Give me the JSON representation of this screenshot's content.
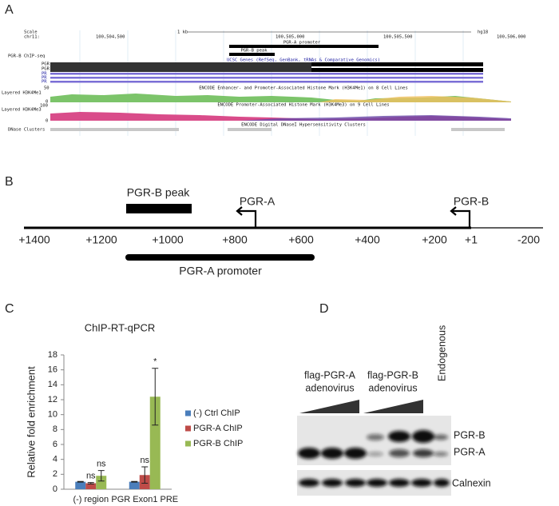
{
  "panel_a": {
    "label": "A",
    "scale_label": "Scale",
    "scale_value": "1 kb",
    "assembly": "hg18",
    "chrom": "chr11:",
    "positions": [
      "100,504,500",
      "100,505,000",
      "100,505,500",
      "100,506,000"
    ],
    "promoter": "PGR-A promoter",
    "peak": "PGR-B peak",
    "chip_track": "PGR-B ChIP-seq",
    "genes_track": "UCSC Genes (RefSeq, GenBank, tRNAs & Comparative Genomics)",
    "gene_labels": [
      "PGR",
      "PGR",
      "PR",
      "PR",
      "PR"
    ],
    "h3k4me1_title": "ENCODE Enhancer- and Promoter-Associated Histone Mark (H3K4Me1) on 8 Cell Lines",
    "h3k4me1_track": "Layered H3K4Me1",
    "h3k4me1_range": [
      "50",
      "0"
    ],
    "h3k4me3_title": "ENCODE Promoter-Associated Histone Mark (H3K4Me3) on 9 Cell Lines",
    "h3k4me3_track": "Layered H3K4Me3",
    "h3k4me3_range": [
      "100",
      "0"
    ],
    "dnase_title": "ENCODE Digital DNaseI Hypersensitivity Clusters",
    "dnase_track": "DNase Clusters"
  },
  "panel_b": {
    "label": "B",
    "axis_labels": [
      "+1400",
      "+1200",
      "+1000",
      "+800",
      "+600",
      "+400",
      "+200",
      "+1",
      "-200"
    ],
    "peak": "PGR-B peak",
    "tss_a": "PGR-A",
    "tss_b": "PGR-B",
    "promoter": "PGR-A promoter"
  },
  "chart_data": {
    "type": "bar",
    "panel_label": "C",
    "title": "ChIP-RT-qPCR",
    "y_label": "Relative fold enrichment",
    "categories": [
      "(-) region",
      "PGR Exon1 PRE"
    ],
    "series": [
      {
        "name": "(-) Ctrl ChIP",
        "color": "#4a7ebb",
        "values": [
          1.0,
          1.0
        ],
        "errors": [
          0.05,
          0.05
        ]
      },
      {
        "name": "PGR-A ChIP",
        "color": "#be4b48",
        "values": [
          0.8,
          1.9
        ],
        "errors": [
          0.1,
          1.1
        ],
        "annotations": [
          "ns",
          "ns"
        ]
      },
      {
        "name": "PGR-B ChIP",
        "color": "#98b954",
        "values": [
          1.8,
          12.4
        ],
        "errors": [
          0.7,
          3.8
        ],
        "annotations": [
          "ns",
          "*"
        ]
      }
    ],
    "ylim": [
      0,
      18
    ],
    "yticks": [
      0,
      2,
      4,
      6,
      8,
      10,
      12,
      14,
      16,
      18
    ],
    "legend": "right"
  },
  "panel_d": {
    "label": "D",
    "group_a": [
      "flag-PGR-A",
      "adenovirus"
    ],
    "group_b": [
      "flag-PGR-B",
      "adenovirus"
    ],
    "endogenous": "Endogenous",
    "band_b": "PGR-B",
    "band_a": "PGR-A",
    "loading": "Calnexin"
  }
}
